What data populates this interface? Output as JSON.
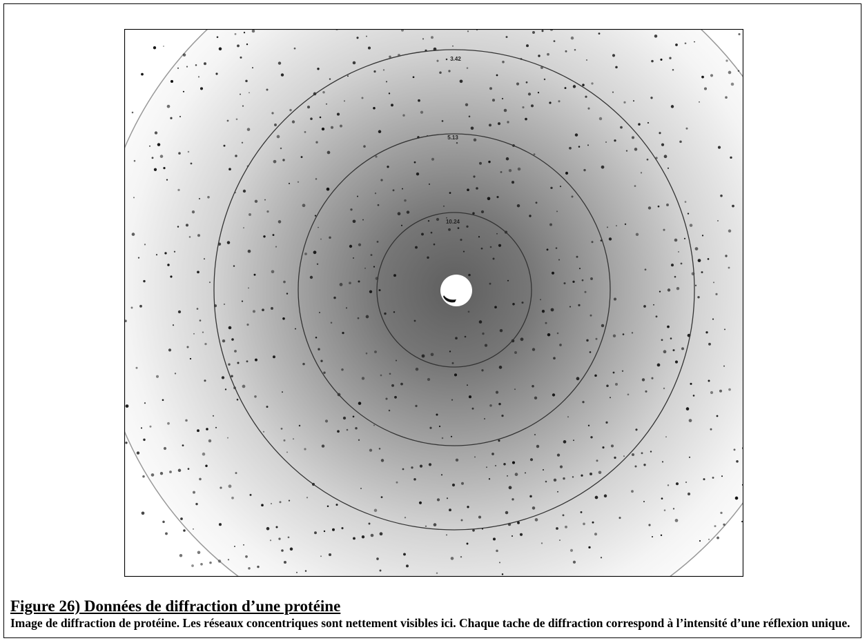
{
  "figure": {
    "ring_labels": [
      "3.42",
      "5.13",
      "10.24"
    ]
  },
  "caption": {
    "title": "Figure 26) Données de diffraction d’une protéine",
    "text": "Image de diffraction de protéine. Les réseaux concentriques sont nettement visibles ici. Chaque tache de diffraction correspond à l’intensité d’une réflexion unique."
  }
}
